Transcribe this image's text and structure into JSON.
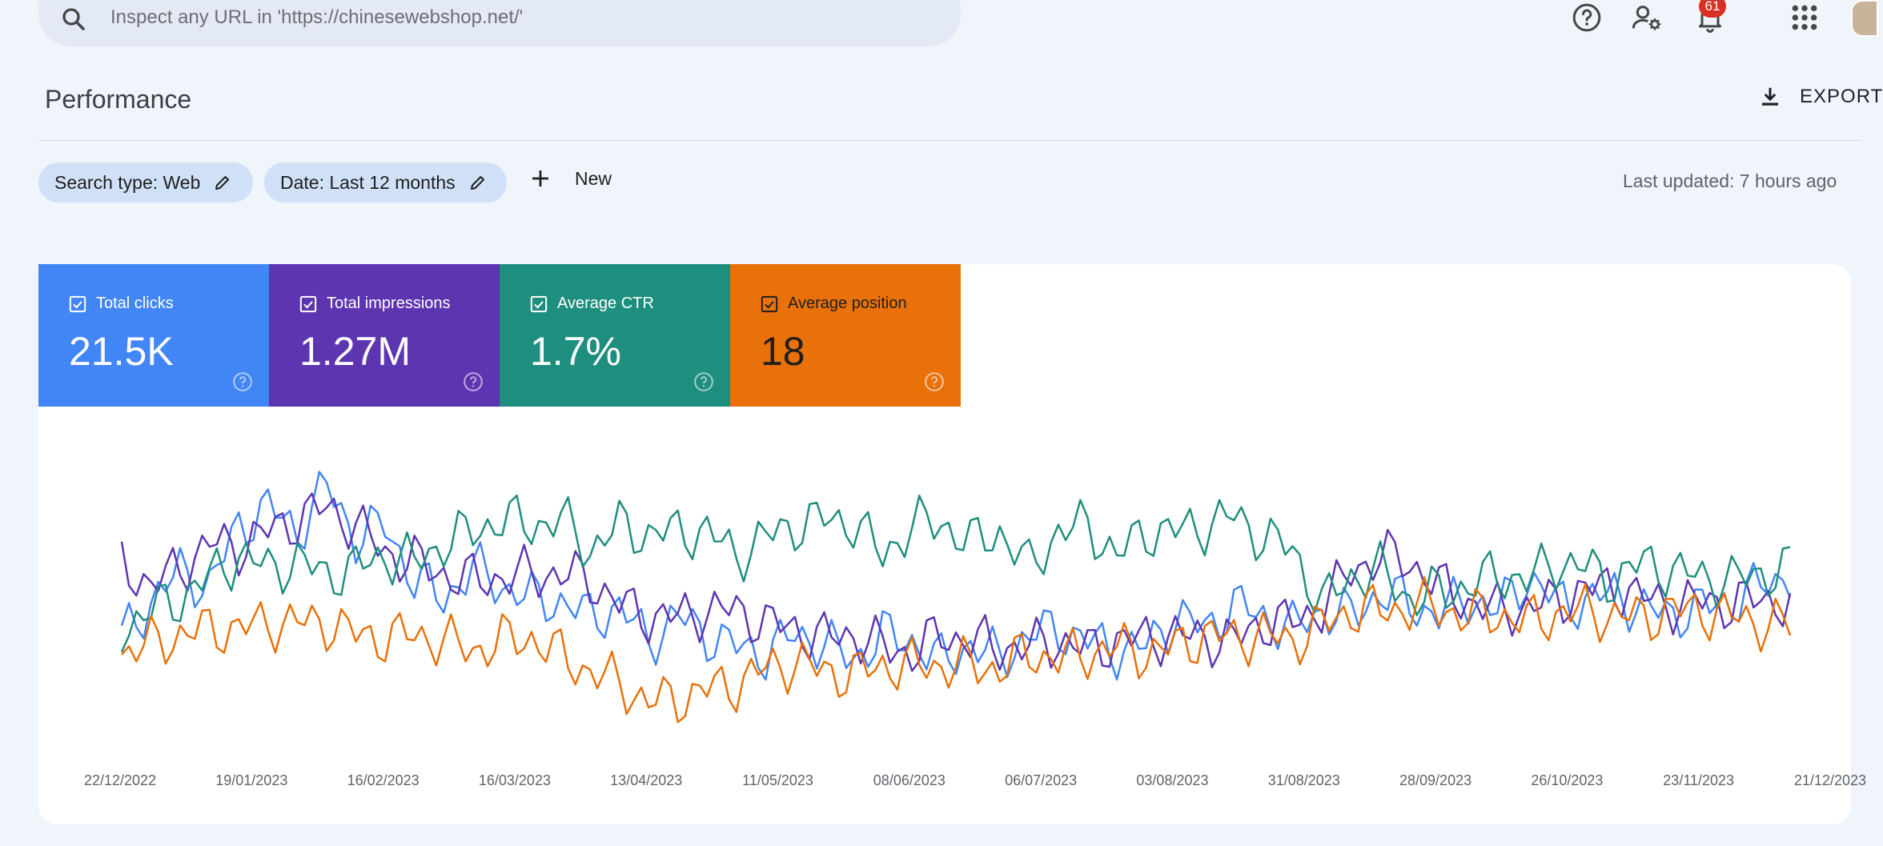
{
  "search": {
    "placeholder": "Inspect any URL in 'https://chinesewebshop.net/'"
  },
  "header": {
    "icons": [
      "help-icon",
      "manage-users-icon",
      "notifications-icon",
      "apps-grid-icon"
    ],
    "notification_count": "61"
  },
  "page": {
    "title": "Performance",
    "export_label": "EXPORT"
  },
  "filters": {
    "search_type": "Search type: Web",
    "date": "Date: Last 12 months",
    "new_label": "New",
    "last_updated": "Last updated: 7 hours ago"
  },
  "metrics": [
    {
      "label": "Total clicks",
      "value": "21.5K",
      "color": "#4285f4",
      "checked": true
    },
    {
      "label": "Total impressions",
      "value": "1.27M",
      "color": "#5e35b1",
      "checked": true
    },
    {
      "label": "Average CTR",
      "value": "1.7%",
      "color": "#1e8e7e",
      "checked": true
    },
    {
      "label": "Average position",
      "value": "18",
      "color": "#e8710a",
      "checked": true
    }
  ],
  "chart_data": {
    "type": "line",
    "x_ticks": [
      "22/12/2022",
      "19/01/2023",
      "16/02/2023",
      "16/03/2023",
      "13/04/2023",
      "11/05/2023",
      "08/06/2023",
      "06/07/2023",
      "03/08/2023",
      "31/08/2023",
      "28/09/2023",
      "26/10/2023",
      "23/11/2023",
      "21/12/2023"
    ],
    "y_axis": "hidden (no tick labels shown); each series on its own normalized scale, values 0-100",
    "grid": false,
    "series_order": [
      "Total clicks",
      "Total impressions",
      "Average CTR",
      "Average position"
    ],
    "colors": [
      "#4285f4",
      "#5e35b1",
      "#1e8e7e",
      "#e8710a"
    ],
    "series_values": [
      [
        35,
        47,
        57,
        52,
        72,
        78,
        70,
        85,
        68,
        72,
        54,
        48,
        58,
        52,
        48,
        47,
        42,
        45,
        34,
        42,
        36,
        32,
        30,
        36,
        33,
        28,
        36,
        34,
        27,
        33,
        28,
        36,
        38,
        34,
        31,
        32,
        42,
        38,
        46,
        42,
        38,
        44,
        42,
        50,
        46,
        43,
        48,
        44,
        55,
        47,
        47,
        50,
        44,
        43,
        45,
        47,
        52,
        56
      ],
      [
        60,
        52,
        58,
        66,
        65,
        70,
        74,
        78,
        72,
        63,
        60,
        56,
        54,
        55,
        56,
        56,
        54,
        46,
        42,
        42,
        44,
        44,
        40,
        38,
        35,
        36,
        32,
        30,
        36,
        34,
        32,
        32,
        34,
        31,
        34,
        35,
        36,
        35,
        34,
        40,
        40,
        45,
        57,
        62,
        60,
        52,
        47,
        44,
        45,
        47,
        51,
        52,
        48,
        46,
        47,
        46,
        48,
        46
      ],
      [
        38,
        44,
        48,
        55,
        62,
        58,
        60,
        56,
        58,
        62,
        60,
        66,
        70,
        74,
        72,
        74,
        64,
        72,
        69,
        70,
        70,
        62,
        68,
        72,
        74,
        73,
        62,
        72,
        73,
        66,
        70,
        58,
        70,
        72,
        62,
        70,
        70,
        72,
        75,
        68,
        64,
        46,
        55,
        57,
        48,
        50,
        52,
        56,
        54,
        60,
        58,
        54,
        60,
        57,
        55,
        54,
        56,
        58
      ],
      [
        30,
        33,
        36,
        38,
        38,
        40,
        40,
        40,
        36,
        35,
        36,
        34,
        31,
        34,
        35,
        29,
        24,
        20,
        14,
        15,
        18,
        20,
        25,
        27,
        24,
        23,
        26,
        26,
        26,
        26,
        25,
        30,
        28,
        30,
        32,
        30,
        32,
        36,
        35,
        36,
        34,
        39,
        44,
        44,
        45,
        45,
        42,
        43,
        40,
        43,
        44,
        42,
        42,
        44,
        44,
        42,
        40,
        39
      ]
    ]
  }
}
